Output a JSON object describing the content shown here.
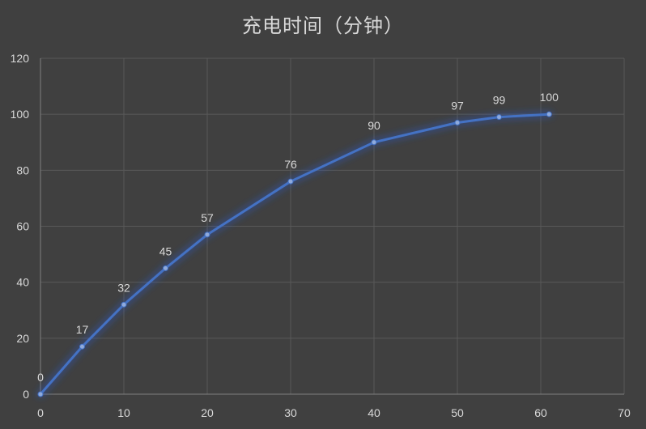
{
  "colors": {
    "background": "#404040",
    "series": "#4472c4",
    "marker": "#8faadc",
    "glow": "#2f5bd0",
    "grid": "#595959",
    "text": "#d9d9d9"
  },
  "chart_data": {
    "type": "line",
    "title": "充电时间（分钟）",
    "xlabel": "",
    "ylabel": "",
    "xlim": [
      0,
      70
    ],
    "ylim": [
      0,
      120
    ],
    "x_ticks": [
      0,
      10,
      20,
      30,
      40,
      50,
      60,
      70
    ],
    "y_ticks": [
      0,
      20,
      40,
      60,
      80,
      100,
      120
    ],
    "grid": true,
    "legend": "none",
    "series": [
      {
        "x": [
          0,
          5,
          10,
          15,
          20,
          30,
          40,
          50,
          55,
          61
        ],
        "y": [
          0,
          17,
          32,
          45,
          57,
          76,
          90,
          97,
          99,
          100
        ],
        "data_labels": [
          "0",
          "17",
          "32",
          "45",
          "57",
          "76",
          "90",
          "97",
          "99",
          "100"
        ]
      }
    ]
  }
}
